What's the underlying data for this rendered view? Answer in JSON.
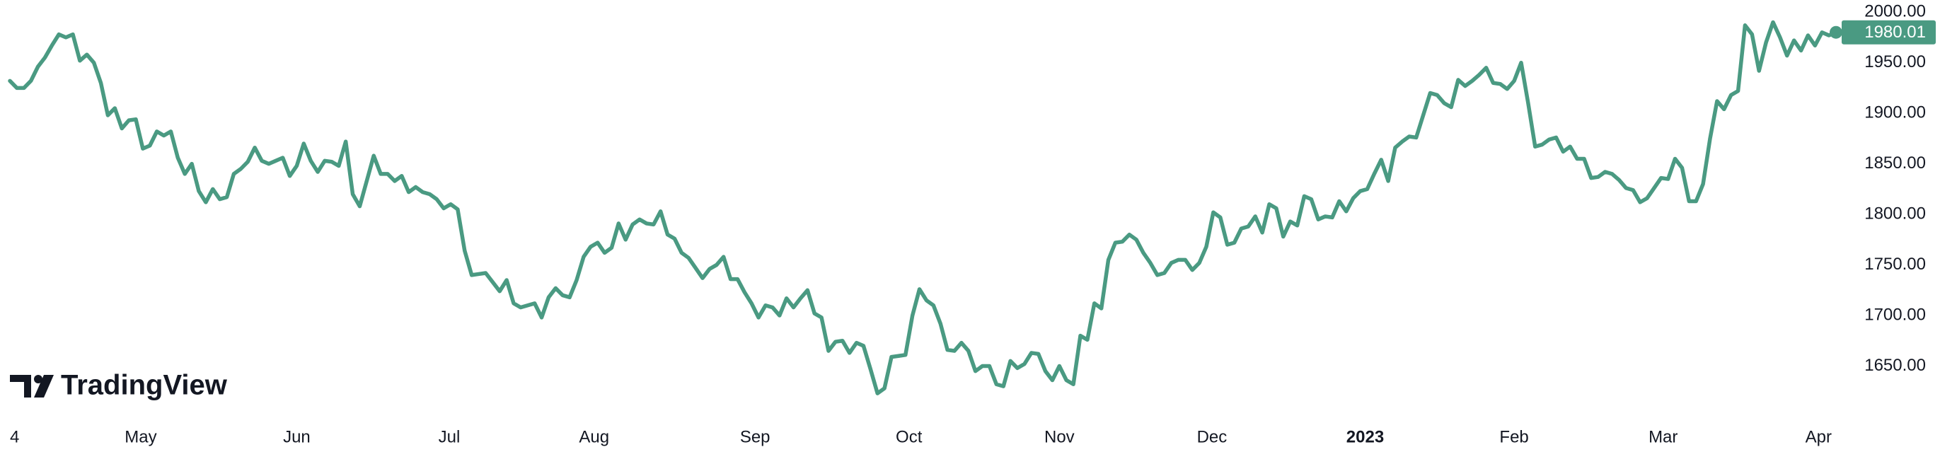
{
  "chart_data": {
    "type": "line",
    "watermark": "TradingView",
    "color": "#4a9a82",
    "values": [
      1932,
      1925,
      1925,
      1932,
      1946,
      1955,
      1967,
      1978,
      1975,
      1978,
      1952,
      1958,
      1950,
      1930,
      1898,
      1905,
      1885,
      1893,
      1894,
      1865,
      1868,
      1882,
      1878,
      1882,
      1856,
      1840,
      1850,
      1823,
      1812,
      1825,
      1815,
      1817,
      1840,
      1845,
      1852,
      1866,
      1853,
      1850,
      1853,
      1856,
      1838,
      1848,
      1870,
      1853,
      1842,
      1853,
      1852,
      1848,
      1872,
      1820,
      1808,
      1833,
      1858,
      1840,
      1840,
      1833,
      1838,
      1822,
      1827,
      1822,
      1820,
      1815,
      1806,
      1810,
      1805,
      1764,
      1740,
      1741,
      1742,
      1733,
      1724,
      1735,
      1712,
      1708,
      1710,
      1712,
      1698,
      1718,
      1727,
      1720,
      1718,
      1735,
      1758,
      1768,
      1772,
      1762,
      1767,
      1791,
      1775,
      1790,
      1795,
      1791,
      1790,
      1803,
      1780,
      1776,
      1762,
      1757,
      1747,
      1737,
      1746,
      1750,
      1758,
      1736,
      1736,
      1723,
      1712,
      1698,
      1710,
      1708,
      1700,
      1717,
      1708,
      1717,
      1725,
      1702,
      1698,
      1665,
      1674,
      1675,
      1663,
      1673,
      1670,
      1647,
      1623,
      1628,
      1659,
      1660,
      1661,
      1700,
      1726,
      1715,
      1710,
      1692,
      1666,
      1665,
      1673,
      1665,
      1645,
      1650,
      1650,
      1632,
      1630,
      1655,
      1648,
      1652,
      1663,
      1662,
      1645,
      1636,
      1650,
      1636,
      1632,
      1680,
      1676,
      1712,
      1707,
      1755,
      1772,
      1773,
      1780,
      1775,
      1762,
      1752,
      1740,
      1742,
      1752,
      1755,
      1755,
      1745,
      1752,
      1768,
      1802,
      1797,
      1770,
      1772,
      1786,
      1788,
      1798,
      1782,
      1810,
      1806,
      1778,
      1793,
      1789,
      1818,
      1815,
      1795,
      1798,
      1797,
      1813,
      1803,
      1816,
      1823,
      1825,
      1840,
      1854,
      1833,
      1866,
      1872,
      1877,
      1876,
      1898,
      1920,
      1918,
      1910,
      1906,
      1933,
      1927,
      1932,
      1938,
      1945,
      1930,
      1929,
      1924,
      1932,
      1950,
      1910,
      1867,
      1869,
      1874,
      1876,
      1862,
      1867,
      1855,
      1855,
      1836,
      1837,
      1842,
      1840,
      1834,
      1826,
      1824,
      1812,
      1816,
      1826,
      1836,
      1835,
      1855,
      1846,
      1813,
      1813,
      1830,
      1875,
      1912,
      1904,
      1918,
      1922,
      1987,
      1978,
      1942,
      1970,
      1990,
      1975,
      1957,
      1972,
      1962,
      1977,
      1967,
      1980,
      1977,
      1980.01
    ],
    "xlim": [
      0,
      261
    ],
    "xticks": [
      {
        "value": 0,
        "label": "4"
      },
      {
        "value": 18.7,
        "label": "May"
      },
      {
        "value": 41,
        "label": "Jun"
      },
      {
        "value": 62.8,
        "label": "Jul"
      },
      {
        "value": 83.5,
        "label": "Aug"
      },
      {
        "value": 106.5,
        "label": "Sep"
      },
      {
        "value": 128.5,
        "label": "Oct"
      },
      {
        "value": 150,
        "label": "Nov"
      },
      {
        "value": 171.8,
        "label": "Dec"
      },
      {
        "value": 193.7,
        "label": "2023"
      },
      {
        "value": 215,
        "label": "Feb"
      },
      {
        "value": 236.3,
        "label": "Mar"
      },
      {
        "value": 258.5,
        "label": "Apr"
      }
    ],
    "ylim": [
      1600,
      2012
    ],
    "yticks": [
      {
        "value": 1650,
        "label": "1650.00"
      },
      {
        "value": 1700,
        "label": "1700.00"
      },
      {
        "value": 1750,
        "label": "1750.00"
      },
      {
        "value": 1800,
        "label": "1800.00"
      },
      {
        "value": 1850,
        "label": "1850.00"
      },
      {
        "value": 1900,
        "label": "1900.00"
      },
      {
        "value": 1950,
        "label": "1950.00"
      },
      {
        "value": 2000,
        "label": "2000.00"
      }
    ],
    "grid": false
  }
}
